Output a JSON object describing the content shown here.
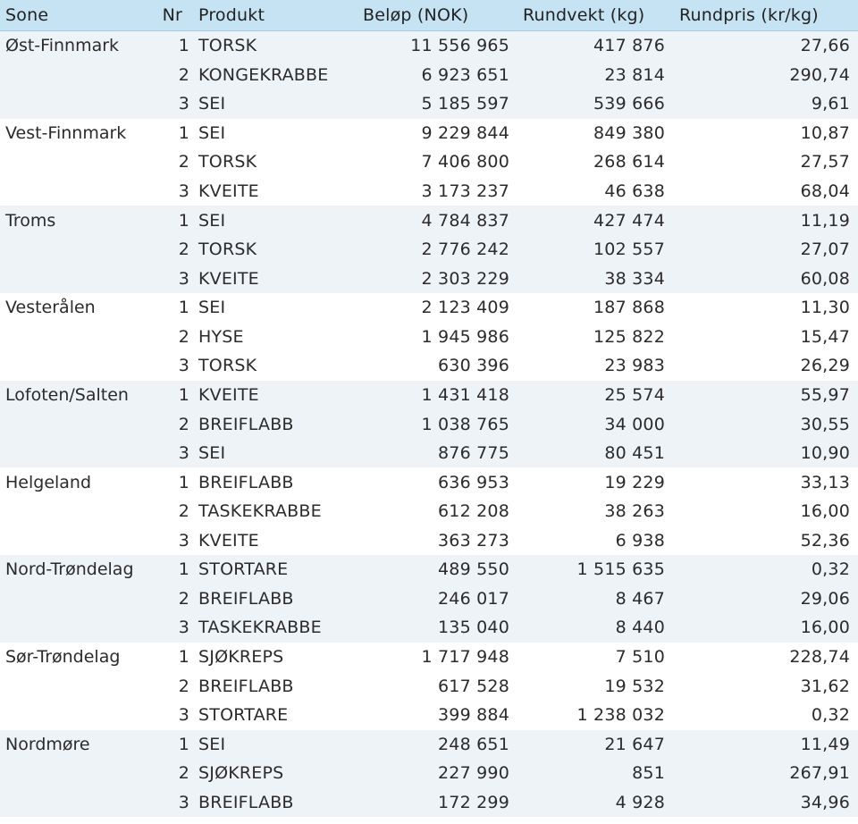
{
  "columns": {
    "sone": "Sone",
    "nr": "Nr",
    "produkt": "Produkt",
    "belop": "Beløp (NOK)",
    "rundvekt": "Rundvekt (kg)",
    "rundpris": "Rundpris (kr/kg)"
  },
  "groups": [
    {
      "sone": "Øst-Finnmark",
      "rows": [
        {
          "nr": "1",
          "produkt": "TORSK",
          "belop": "11 556 965",
          "rundvekt": "417 876",
          "rundpris": "27,66"
        },
        {
          "nr": "2",
          "produkt": "KONGEKRABBE",
          "belop": "6 923 651",
          "rundvekt": "23 814",
          "rundpris": "290,74"
        },
        {
          "nr": "3",
          "produkt": "SEI",
          "belop": "5 185 597",
          "rundvekt": "539 666",
          "rundpris": "9,61"
        }
      ]
    },
    {
      "sone": "Vest-Finnmark",
      "rows": [
        {
          "nr": "1",
          "produkt": "SEI",
          "belop": "9 229 844",
          "rundvekt": "849 380",
          "rundpris": "10,87"
        },
        {
          "nr": "2",
          "produkt": "TORSK",
          "belop": "7 406 800",
          "rundvekt": "268 614",
          "rundpris": "27,57"
        },
        {
          "nr": "3",
          "produkt": "KVEITE",
          "belop": "3 173 237",
          "rundvekt": "46 638",
          "rundpris": "68,04"
        }
      ]
    },
    {
      "sone": "Troms",
      "rows": [
        {
          "nr": "1",
          "produkt": "SEI",
          "belop": "4 784 837",
          "rundvekt": "427 474",
          "rundpris": "11,19"
        },
        {
          "nr": "2",
          "produkt": "TORSK",
          "belop": "2 776 242",
          "rundvekt": "102 557",
          "rundpris": "27,07"
        },
        {
          "nr": "3",
          "produkt": "KVEITE",
          "belop": "2 303 229",
          "rundvekt": "38 334",
          "rundpris": "60,08"
        }
      ]
    },
    {
      "sone": "Vesterålen",
      "rows": [
        {
          "nr": "1",
          "produkt": "SEI",
          "belop": "2 123 409",
          "rundvekt": "187 868",
          "rundpris": "11,30"
        },
        {
          "nr": "2",
          "produkt": "HYSE",
          "belop": "1 945 986",
          "rundvekt": "125 822",
          "rundpris": "15,47"
        },
        {
          "nr": "3",
          "produkt": "TORSK",
          "belop": "630 396",
          "rundvekt": "23 983",
          "rundpris": "26,29"
        }
      ]
    },
    {
      "sone": "Lofoten/Salten",
      "rows": [
        {
          "nr": "1",
          "produkt": "KVEITE",
          "belop": "1 431 418",
          "rundvekt": "25 574",
          "rundpris": "55,97"
        },
        {
          "nr": "2",
          "produkt": "BREIFLABB",
          "belop": "1 038 765",
          "rundvekt": "34 000",
          "rundpris": "30,55"
        },
        {
          "nr": "3",
          "produkt": "SEI",
          "belop": "876 775",
          "rundvekt": "80 451",
          "rundpris": "10,90"
        }
      ]
    },
    {
      "sone": "Helgeland",
      "rows": [
        {
          "nr": "1",
          "produkt": "BREIFLABB",
          "belop": "636 953",
          "rundvekt": "19 229",
          "rundpris": "33,13"
        },
        {
          "nr": "2",
          "produkt": "TASKEKRABBE",
          "belop": "612 208",
          "rundvekt": "38 263",
          "rundpris": "16,00"
        },
        {
          "nr": "3",
          "produkt": "KVEITE",
          "belop": "363 273",
          "rundvekt": "6 938",
          "rundpris": "52,36"
        }
      ]
    },
    {
      "sone": "Nord-Trøndelag",
      "rows": [
        {
          "nr": "1",
          "produkt": "STORTARE",
          "belop": "489 550",
          "rundvekt": "1 515 635",
          "rundpris": "0,32"
        },
        {
          "nr": "2",
          "produkt": "BREIFLABB",
          "belop": "246 017",
          "rundvekt": "8 467",
          "rundpris": "29,06"
        },
        {
          "nr": "3",
          "produkt": "TASKEKRABBE",
          "belop": "135 040",
          "rundvekt": "8 440",
          "rundpris": "16,00"
        }
      ]
    },
    {
      "sone": "Sør-Trøndelag",
      "rows": [
        {
          "nr": "1",
          "produkt": "SJØKREPS",
          "belop": "1 717 948",
          "rundvekt": "7 510",
          "rundpris": "228,74"
        },
        {
          "nr": "2",
          "produkt": "BREIFLABB",
          "belop": "617 528",
          "rundvekt": "19 532",
          "rundpris": "31,62"
        },
        {
          "nr": "3",
          "produkt": "STORTARE",
          "belop": "399 884",
          "rundvekt": "1 238 032",
          "rundpris": "0,32"
        }
      ]
    },
    {
      "sone": "Nordmøre",
      "rows": [
        {
          "nr": "1",
          "produkt": "SEI",
          "belop": "248 651",
          "rundvekt": "21 647",
          "rundpris": "11,49"
        },
        {
          "nr": "2",
          "produkt": "SJØKREPS",
          "belop": "227 990",
          "rundvekt": "851",
          "rundpris": "267,91"
        },
        {
          "nr": "3",
          "produkt": "BREIFLABB",
          "belop": "172 299",
          "rundvekt": "4 928",
          "rundpris": "34,96"
        }
      ]
    }
  ]
}
